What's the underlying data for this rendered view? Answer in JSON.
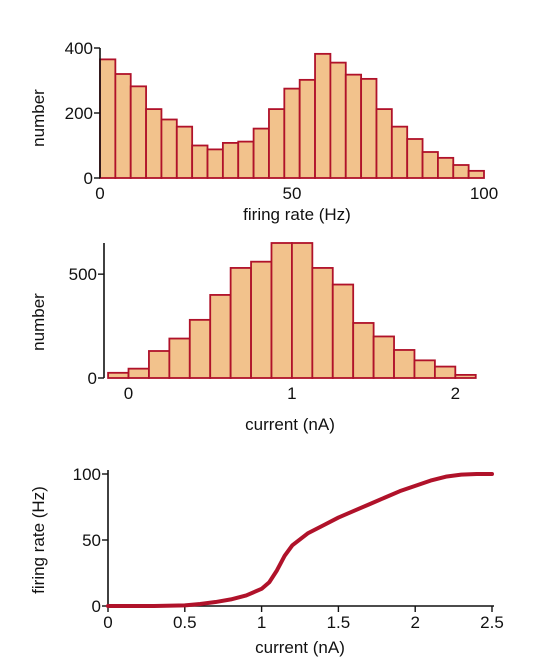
{
  "chart_data": [
    {
      "type": "bar",
      "xlabel": "firing rate (Hz)",
      "ylabel": "number",
      "xlim": [
        0,
        100
      ],
      "ylim": [
        0,
        400
      ],
      "x_ticks": [
        "0",
        "50",
        "100"
      ],
      "y_ticks": [
        "0",
        "200",
        "400"
      ],
      "bin_width": 4,
      "bin_start": 0,
      "values": [
        365,
        320,
        282,
        212,
        180,
        158,
        100,
        88,
        108,
        112,
        152,
        212,
        275,
        302,
        382,
        355,
        318,
        305,
        212,
        158,
        120,
        80,
        62,
        40,
        22
      ],
      "colors": {
        "fill": "#f2c28c",
        "edge": "#b0122a"
      }
    },
    {
      "type": "bar",
      "xlabel": "current (nA)",
      "ylabel": "number",
      "xlim": [
        -0.15,
        2.2
      ],
      "ylim": [
        0,
        650
      ],
      "x_ticks": [
        "0",
        "1",
        "2"
      ],
      "y_ticks": [
        "0",
        "500"
      ],
      "bin_width": 0.125,
      "bin_start": -0.125,
      "values": [
        25,
        45,
        130,
        190,
        280,
        400,
        530,
        560,
        650,
        650,
        530,
        450,
        265,
        200,
        135,
        85,
        55,
        15
      ],
      "colors": {
        "fill": "#f2c28c",
        "edge": "#b0122a"
      }
    },
    {
      "type": "line",
      "xlabel": "current (nA)",
      "ylabel": "firing rate (Hz)",
      "xlim": [
        0,
        2.5
      ],
      "ylim": [
        0,
        100
      ],
      "x_ticks": [
        "0",
        "0.5",
        "1",
        "1.5",
        "2",
        "2.5"
      ],
      "y_ticks": [
        "0",
        "50",
        "100"
      ],
      "x": [
        0,
        0.3,
        0.5,
        0.6,
        0.7,
        0.8,
        0.9,
        1.0,
        1.05,
        1.1,
        1.15,
        1.2,
        1.3,
        1.4,
        1.5,
        1.6,
        1.7,
        1.8,
        1.9,
        2.0,
        2.1,
        2.2,
        2.3,
        2.4,
        2.5
      ],
      "y": [
        0,
        0,
        0.5,
        1.5,
        3,
        5,
        8,
        13,
        18,
        27,
        38,
        46,
        55,
        61,
        67,
        72,
        77,
        82,
        87,
        91,
        95,
        98,
        99.5,
        100,
        100
      ],
      "colors": {
        "line": "#b0122a"
      }
    }
  ]
}
